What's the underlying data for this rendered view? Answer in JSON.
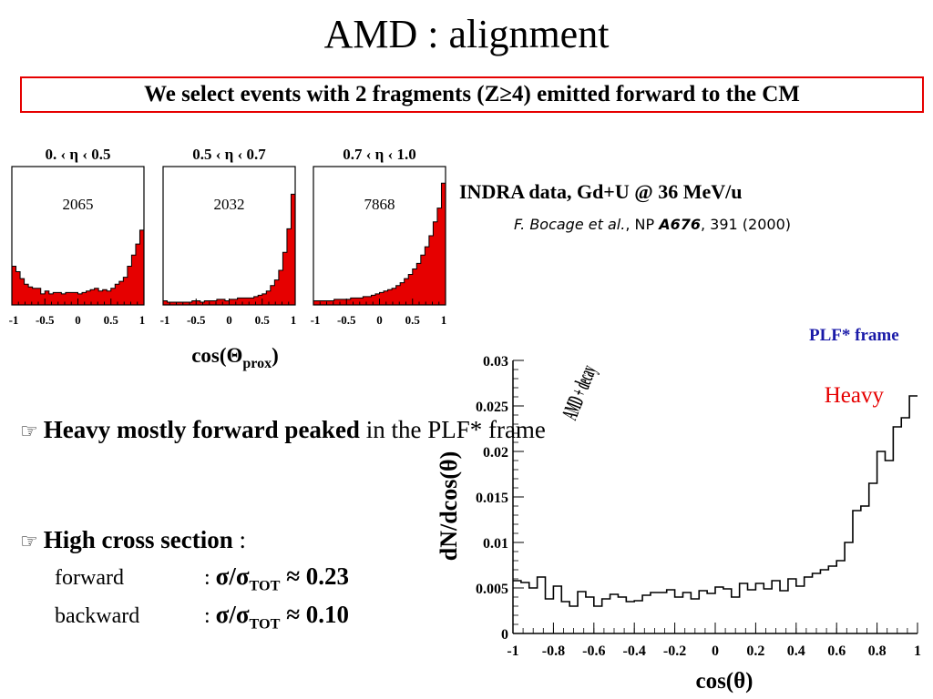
{
  "slide": {
    "title": "AMD : alignment",
    "subtitle": "We select events with 2 fragments (Z≥4) emitted forward to the CM"
  },
  "reference": {
    "data_line": "INDRA data, Gd+U @ 36 MeV/u",
    "authors": "F. Bocage et al.",
    "journal": "NP",
    "volume": "A676",
    "pages_year": ", 391 (2000)"
  },
  "frame_label": "PLF* frame",
  "bullets": {
    "glyph": "☞",
    "b1_bold": "Heavy mostly forward peaked",
    "b1_rest": "in the PLF* frame",
    "b2_bold": "High cross section",
    "b2_rest": " :",
    "forward_label": "forward",
    "backward_label": "backward",
    "colon": ":",
    "forward_value": "0.23",
    "backward_value": "0.10",
    "ratio_symbol": "σ/σ",
    "ratio_sub": "TOT",
    "approx": "≈"
  },
  "colors": {
    "fill": "#e60000",
    "frame_label": "#1a1aa8",
    "heavy_label": "#e60000",
    "subtitle_border": "#e60000"
  },
  "chart_data": [
    {
      "type": "bar",
      "panel_label": "0. ‹  η  ‹ 0.5",
      "annotation": "2065",
      "x_ticks": [
        "-1",
        "-0.5",
        "0",
        "0.5",
        "1"
      ],
      "xlim": [
        -1,
        1
      ],
      "values": [
        0.28,
        0.24,
        0.19,
        0.15,
        0.13,
        0.12,
        0.12,
        0.08,
        0.1,
        0.08,
        0.09,
        0.09,
        0.08,
        0.09,
        0.09,
        0.09,
        0.08,
        0.09,
        0.1,
        0.11,
        0.12,
        0.1,
        0.11,
        0.1,
        0.12,
        0.15,
        0.17,
        0.2,
        0.28,
        0.36,
        0.44,
        0.54
      ]
    },
    {
      "type": "bar",
      "panel_label": "0.5 ‹  η  ‹ 0.7",
      "annotation": "2032",
      "x_ticks": [
        "-1",
        "-0.5",
        "0",
        "0.5",
        "1"
      ],
      "xlim": [
        -1,
        1
      ],
      "values": [
        0.03,
        0.02,
        0.02,
        0.02,
        0.02,
        0.02,
        0.02,
        0.03,
        0.03,
        0.02,
        0.03,
        0.03,
        0.03,
        0.04,
        0.04,
        0.03,
        0.04,
        0.04,
        0.05,
        0.05,
        0.05,
        0.05,
        0.06,
        0.07,
        0.08,
        0.1,
        0.14,
        0.18,
        0.25,
        0.38,
        0.55,
        0.8
      ]
    },
    {
      "type": "bar",
      "panel_label": "0.7 ‹  η  ‹ 1.0",
      "annotation": "7868",
      "x_ticks": [
        "-1",
        "-0.5",
        "0",
        "0.5",
        "1"
      ],
      "xlim": [
        -1,
        1
      ],
      "values": [
        0.03,
        0.03,
        0.03,
        0.03,
        0.03,
        0.04,
        0.04,
        0.04,
        0.04,
        0.05,
        0.05,
        0.05,
        0.06,
        0.06,
        0.07,
        0.08,
        0.09,
        0.1,
        0.11,
        0.12,
        0.14,
        0.16,
        0.19,
        0.22,
        0.26,
        0.3,
        0.36,
        0.42,
        0.5,
        0.6,
        0.7,
        0.88
      ]
    },
    {
      "type": "line",
      "step": true,
      "series": [
        {
          "name": "Heavy"
        }
      ],
      "annotation": "AMD + decay",
      "xlabel": "cos(θ)",
      "ylabel": "dN/dcos(θ)",
      "xlim": [
        -1,
        1
      ],
      "ylim": [
        0,
        0.03
      ],
      "x_ticks": [
        "-1",
        "-0.8",
        "-0.6",
        "-0.4",
        "-0.2",
        "0",
        "0.2",
        "0.4",
        "0.6",
        "0.8",
        "1"
      ],
      "y_ticks": [
        "0",
        "0.005",
        "0.01",
        "0.015",
        "0.02",
        "0.025",
        "0.03"
      ],
      "values": [
        0.0058,
        0.0056,
        0.005,
        0.0062,
        0.0038,
        0.0052,
        0.0035,
        0.003,
        0.0046,
        0.004,
        0.003,
        0.0038,
        0.0043,
        0.004,
        0.0035,
        0.0036,
        0.0042,
        0.0045,
        0.0045,
        0.0048,
        0.004,
        0.0045,
        0.0038,
        0.0047,
        0.0044,
        0.0051,
        0.0049,
        0.004,
        0.0055,
        0.0048,
        0.0055,
        0.0049,
        0.0058,
        0.0047,
        0.006,
        0.0052,
        0.0062,
        0.0066,
        0.007,
        0.0074,
        0.008,
        0.01,
        0.0135,
        0.014,
        0.0165,
        0.02,
        0.019,
        0.0227,
        0.0237,
        0.0261
      ]
    }
  ],
  "cos_prox_label": {
    "base": "cos(Θ",
    "sub": "prox",
    "close": ")"
  },
  "heavy_label": "Heavy"
}
